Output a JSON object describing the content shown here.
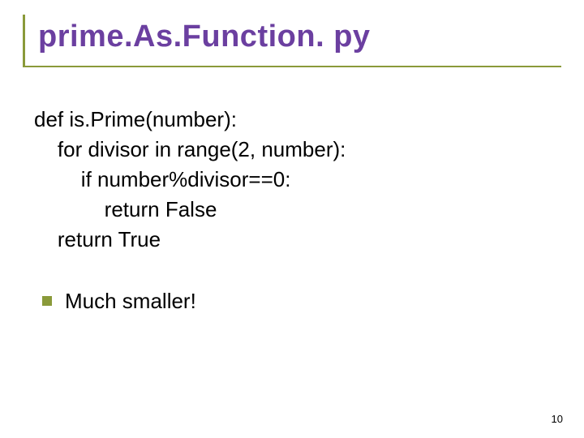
{
  "title": {
    "text": "prime.As.Function. py",
    "color": "#6b3fa0",
    "border_color": "#8a9a3a",
    "fontsize": 38
  },
  "code": {
    "lines": [
      "def is.Prime(number):",
      "    for divisor in range(2, number):",
      "        if number%divisor==0:",
      "            return False",
      "    return True"
    ],
    "color": "#000000",
    "fontsize": 26
  },
  "bullet": {
    "marker_color": "#8a9a3a",
    "text": "Much smaller!",
    "text_color": "#000000",
    "fontsize": 26
  },
  "page_number": "10",
  "background_color": "#ffffff"
}
